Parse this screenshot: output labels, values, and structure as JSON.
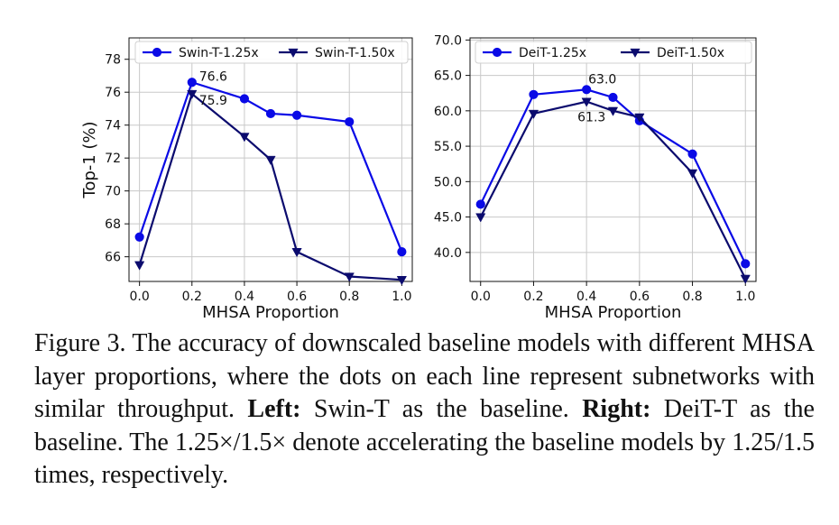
{
  "chart_data": [
    {
      "type": "line",
      "x": [
        0.0,
        0.2,
        0.4,
        0.5,
        0.6,
        0.8,
        1.0
      ],
      "xlabel": "MHSA Proportion",
      "ylabel": "Top-1 (%)",
      "xlim": [
        -0.04,
        1.04
      ],
      "ylim": [
        64.5,
        79.3
      ],
      "xticks": [
        "0.0",
        "0.2",
        "0.4",
        "0.6",
        "0.8",
        "1.0"
      ],
      "xtick_values": [
        0.0,
        0.2,
        0.4,
        0.6,
        0.8,
        1.0
      ],
      "yticks": [
        "66",
        "68",
        "70",
        "72",
        "74",
        "76",
        "78"
      ],
      "ytick_values": [
        66,
        68,
        70,
        72,
        74,
        76,
        78
      ],
      "grid": true,
      "legend_position": "top",
      "series": [
        {
          "name": "Swin-T-1.25x",
          "marker": "circle",
          "color": "#0a0ae6",
          "values": [
            67.2,
            76.6,
            75.6,
            74.7,
            74.6,
            74.2,
            66.3
          ]
        },
        {
          "name": "Swin-T-1.50x",
          "marker": "triangle-down",
          "color": "#0b0b6e",
          "values": [
            65.5,
            75.9,
            73.3,
            71.9,
            66.3,
            64.8,
            64.6
          ]
        }
      ],
      "annotations": [
        {
          "text": "76.6",
          "x": 0.2,
          "y": 76.6
        },
        {
          "text": "75.9",
          "x": 0.2,
          "y": 75.9
        }
      ]
    },
    {
      "type": "line",
      "x": [
        0.0,
        0.2,
        0.4,
        0.5,
        0.6,
        0.8,
        1.0
      ],
      "xlabel": "MHSA Proportion",
      "ylabel": "",
      "xlim": [
        -0.04,
        1.04
      ],
      "ylim": [
        35.9,
        70.3
      ],
      "xticks": [
        "0.0",
        "0.2",
        "0.4",
        "0.6",
        "0.8",
        "1.0"
      ],
      "xtick_values": [
        0.0,
        0.2,
        0.4,
        0.6,
        0.8,
        1.0
      ],
      "yticks": [
        "40.0",
        "45.0",
        "50.0",
        "55.0",
        "60.0",
        "65.0",
        "70.0"
      ],
      "ytick_values": [
        40,
        45,
        50,
        55,
        60,
        65,
        70
      ],
      "grid": true,
      "legend_position": "top",
      "series": [
        {
          "name": "DeiT-1.25x",
          "marker": "circle",
          "color": "#0a0ae6",
          "values": [
            46.8,
            62.3,
            63.0,
            61.9,
            58.6,
            53.9,
            38.4
          ]
        },
        {
          "name": "DeiT-1.50x",
          "marker": "triangle-down",
          "color": "#0b0b6e",
          "values": [
            45.0,
            59.6,
            61.3,
            60.0,
            59.1,
            51.2,
            36.3
          ]
        }
      ],
      "annotations": [
        {
          "text": "63.0",
          "x": 0.4,
          "y": 63.0
        },
        {
          "text": "61.3",
          "x": 0.4,
          "y": 61.3
        }
      ]
    }
  ],
  "caption": {
    "lead": "Figure 3.  The accuracy of downscaled baseline models with different MHSA layer proportions, where the dots on each line represent subnetworks with similar throughput. ",
    "left_bold": "Left:",
    "left_text": " Swin-T as the baseline. ",
    "right_bold": "Right:",
    "right_text": " DeiT-T as the baseline. The 1.25×/1.5× denote accelerating the baseline models by 1.25/1.5 times, respectively."
  }
}
